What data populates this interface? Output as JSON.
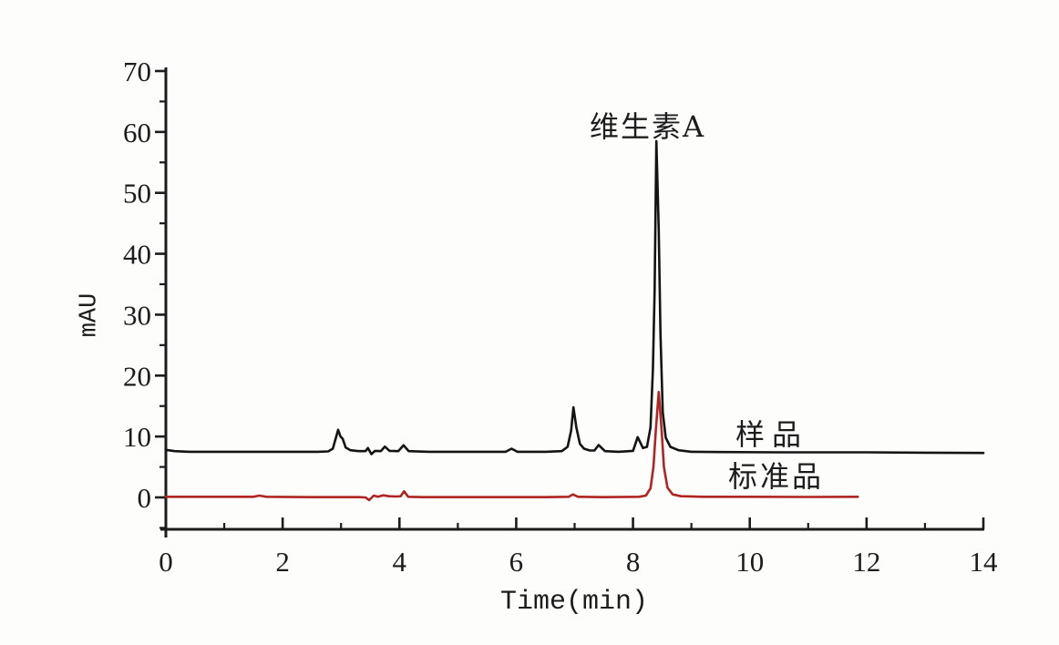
{
  "chart_data": {
    "type": "line",
    "title": "",
    "xlabel": "Time(min)",
    "ylabel": "mAU",
    "xlim": [
      0,
      14
    ],
    "ylim": [
      0,
      70
    ],
    "grid": false,
    "legend_position": "inline-right",
    "x_major_ticks": [
      0,
      2,
      4,
      6,
      8,
      10,
      12,
      14
    ],
    "x_minor_ticks": [
      1,
      3,
      5,
      7,
      9,
      11,
      13
    ],
    "y_major_ticks": [
      0,
      10,
      20,
      30,
      40,
      50,
      60,
      70
    ],
    "y_minor_ticks": [
      -5,
      5,
      15,
      25,
      35,
      45,
      55,
      65
    ],
    "axis_color": "#1c1c1c",
    "annotations": [
      {
        "text": "维生素A",
        "x": 8.4,
        "y": 60
      }
    ],
    "series": [
      {
        "id": "sample",
        "name": "样品",
        "color": "#141414",
        "baseline_mAU": 7.5,
        "main_peak": {
          "x": 8.4,
          "y": 58.5
        },
        "points": [
          [
            0,
            7.8
          ],
          [
            0.15,
            7.6
          ],
          [
            0.4,
            7.5
          ],
          [
            1.0,
            7.5
          ],
          [
            1.8,
            7.5
          ],
          [
            2.6,
            7.5
          ],
          [
            2.78,
            7.55
          ],
          [
            2.86,
            8.0
          ],
          [
            2.91,
            9.7
          ],
          [
            2.95,
            11.1
          ],
          [
            2.99,
            10.0
          ],
          [
            3.03,
            9.6
          ],
          [
            3.08,
            8.2
          ],
          [
            3.16,
            7.75
          ],
          [
            3.3,
            7.6
          ],
          [
            3.42,
            7.6
          ],
          [
            3.46,
            8.1
          ],
          [
            3.52,
            7.1
          ],
          [
            3.58,
            7.65
          ],
          [
            3.68,
            7.6
          ],
          [
            3.75,
            8.35
          ],
          [
            3.83,
            7.65
          ],
          [
            3.98,
            7.6
          ],
          [
            4.07,
            8.55
          ],
          [
            4.16,
            7.6
          ],
          [
            4.5,
            7.5
          ],
          [
            5.1,
            7.5
          ],
          [
            5.55,
            7.5
          ],
          [
            5.82,
            7.5
          ],
          [
            5.92,
            8.0
          ],
          [
            6.02,
            7.5
          ],
          [
            6.5,
            7.5
          ],
          [
            6.78,
            7.6
          ],
          [
            6.88,
            8.3
          ],
          [
            6.94,
            11.0
          ],
          [
            6.98,
            14.8
          ],
          [
            7.03,
            11.5
          ],
          [
            7.09,
            8.8
          ],
          [
            7.16,
            8.0
          ],
          [
            7.26,
            7.7
          ],
          [
            7.34,
            7.7
          ],
          [
            7.41,
            8.6
          ],
          [
            7.52,
            7.6
          ],
          [
            7.75,
            7.5
          ],
          [
            8.0,
            7.65
          ],
          [
            8.08,
            9.9
          ],
          [
            8.17,
            8.1
          ],
          [
            8.24,
            8.3
          ],
          [
            8.3,
            11.5
          ],
          [
            8.34,
            21
          ],
          [
            8.37,
            34
          ],
          [
            8.4,
            58.5
          ],
          [
            8.44,
            44
          ],
          [
            8.47,
            27
          ],
          [
            8.51,
            14
          ],
          [
            8.56,
            9.8
          ],
          [
            8.64,
            8.3
          ],
          [
            8.78,
            7.75
          ],
          [
            9.0,
            7.5
          ],
          [
            9.5,
            7.45
          ],
          [
            10.5,
            7.4
          ],
          [
            12,
            7.4
          ],
          [
            13,
            7.35
          ],
          [
            14,
            7.3
          ]
        ]
      },
      {
        "id": "standard",
        "name": "标准品",
        "color": "#b02421",
        "baseline_mAU": 0,
        "main_peak": {
          "x": 8.44,
          "y": 17.3
        },
        "points": [
          [
            0,
            0.1
          ],
          [
            1.0,
            0.1
          ],
          [
            1.5,
            0.1
          ],
          [
            1.6,
            0.3
          ],
          [
            1.72,
            0.1
          ],
          [
            2.5,
            0.05
          ],
          [
            3.3,
            0.05
          ],
          [
            3.42,
            0.0
          ],
          [
            3.48,
            -0.45
          ],
          [
            3.56,
            0.3
          ],
          [
            3.63,
            0.1
          ],
          [
            3.72,
            0.35
          ],
          [
            3.82,
            0.2
          ],
          [
            3.95,
            0.15
          ],
          [
            4.02,
            0.2
          ],
          [
            4.08,
            1.0
          ],
          [
            4.15,
            0.1
          ],
          [
            4.4,
            0.05
          ],
          [
            5.5,
            0.05
          ],
          [
            6.5,
            0.05
          ],
          [
            6.9,
            0.1
          ],
          [
            6.97,
            0.5
          ],
          [
            7.06,
            0.1
          ],
          [
            7.5,
            0.05
          ],
          [
            8.1,
            0.1
          ],
          [
            8.22,
            0.3
          ],
          [
            8.3,
            1.5
          ],
          [
            8.35,
            5
          ],
          [
            8.39,
            11
          ],
          [
            8.44,
            17.3
          ],
          [
            8.49,
            11
          ],
          [
            8.53,
            5
          ],
          [
            8.59,
            1.6
          ],
          [
            8.68,
            0.5
          ],
          [
            8.82,
            0.2
          ],
          [
            9.2,
            0.1
          ],
          [
            10,
            0.1
          ],
          [
            11,
            0.08
          ],
          [
            11.85,
            0.1
          ]
        ]
      }
    ]
  }
}
